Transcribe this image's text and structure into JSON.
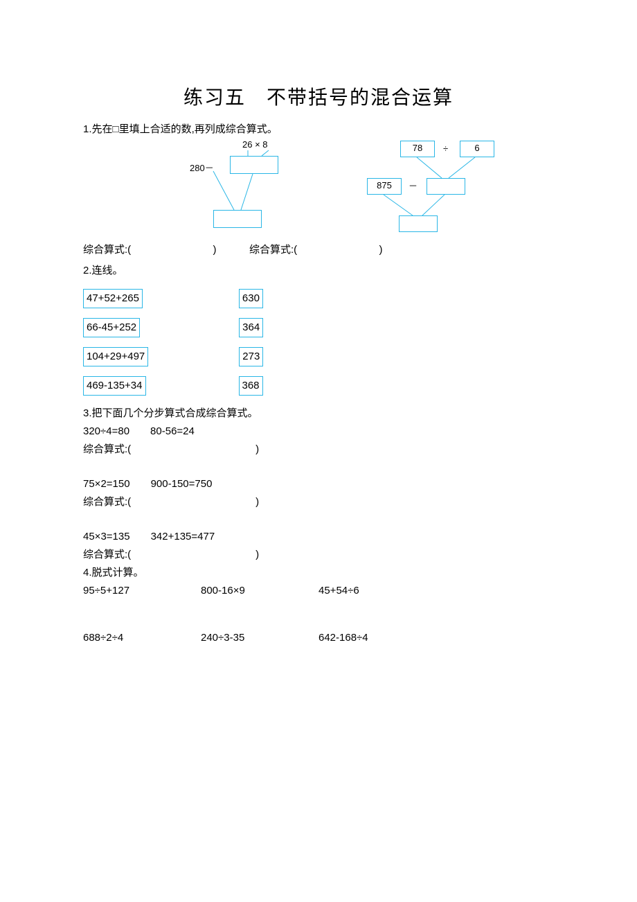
{
  "title": "练习五　不带括号的混合运算",
  "q1": {
    "prompt": "1.先在□里填上合适的数,再列成综合算式。",
    "d1": {
      "top_expr": "26  ×  8",
      "left_val": "280－"
    },
    "d2": {
      "left_box": "78",
      "op1": "÷",
      "right_box": "6",
      "mid_left": "875",
      "mid_op": "－"
    },
    "answer_label": "综合算式:(",
    "answer_close": ")"
  },
  "q2": {
    "prompt": "2.连线。",
    "rows": [
      {
        "l": "47+52+265",
        "r": "630"
      },
      {
        "l": "66-45+252",
        "r": "364"
      },
      {
        "l": "104+29+497",
        "r": "273"
      },
      {
        "l": "469-135+34",
        "r": "368"
      }
    ]
  },
  "q3": {
    "prompt": "3.把下面几个分步算式合成综合算式。",
    "groups": [
      {
        "a": "320÷4=80",
        "b": "80-56=24"
      },
      {
        "a": "75×2=150",
        "b": "900-150=750"
      },
      {
        "a": "45×3=135",
        "b": "342+135=477"
      }
    ],
    "answer_label": "综合算式:(",
    "answer_close": ")"
  },
  "q4": {
    "prompt": "4.脱式计算。",
    "row1": [
      "95÷5+127",
      "800-16×9",
      "45+54÷6"
    ],
    "row2": [
      "688÷2÷4",
      "240÷3-35",
      "642-168÷4"
    ]
  },
  "colors": {
    "box_border": "#29b6e6",
    "line": "#29b6e6",
    "text": "#000000",
    "bg": "#ffffff"
  }
}
